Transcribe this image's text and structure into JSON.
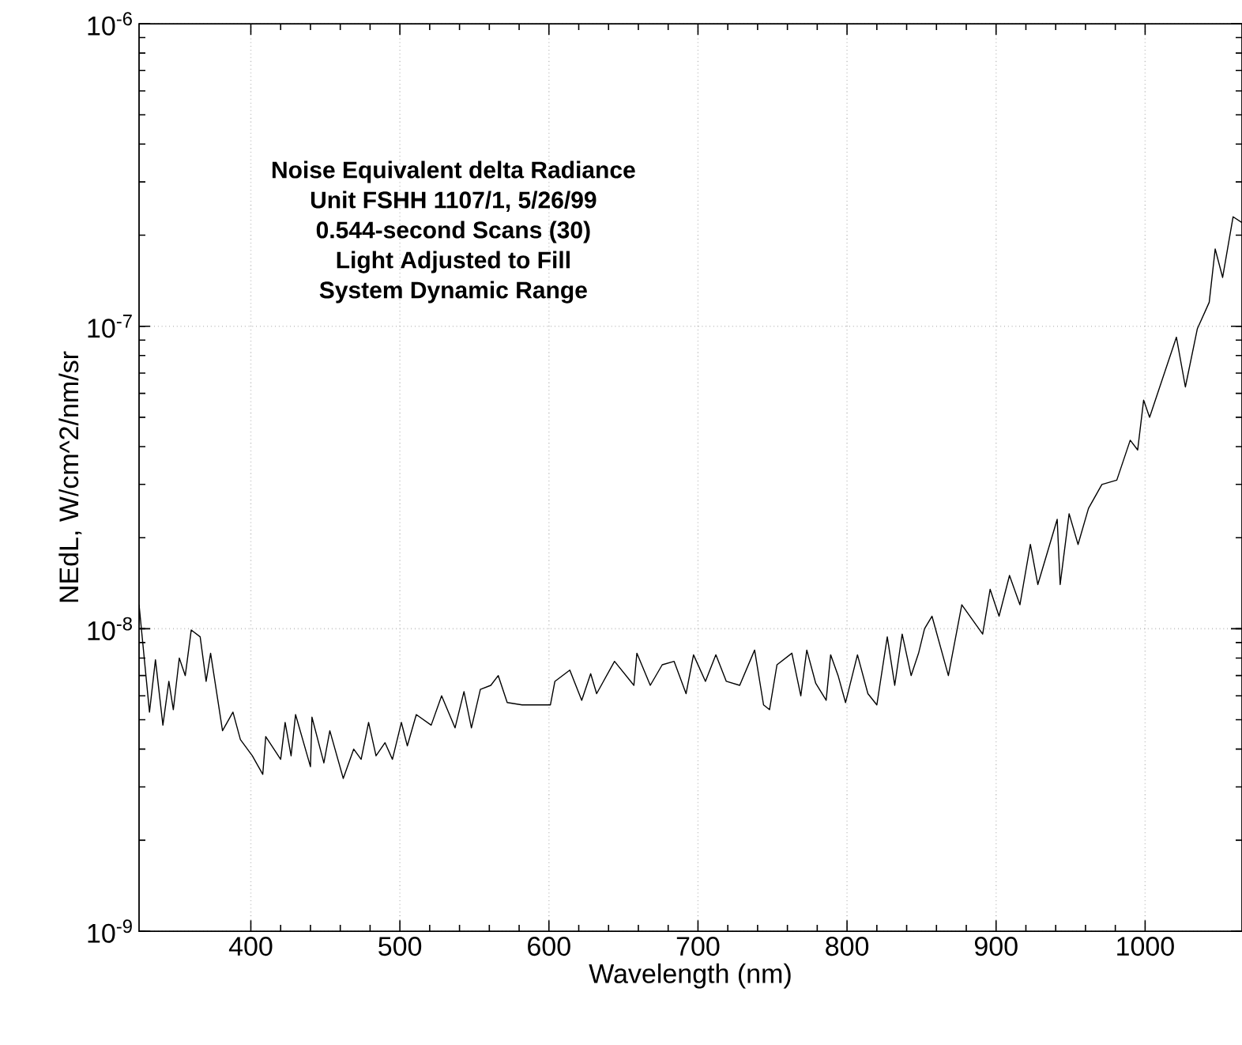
{
  "chart_data": {
    "type": "line",
    "title": "Noise Equivalent delta Radiance",
    "annotations": [
      "Unit FSHH 1107/1, 5/26/99",
      "0.544-second Scans (30)",
      "Light Adjusted to Fill",
      "System Dynamic Range"
    ],
    "xlabel": "Wavelength (nm)",
    "ylabel": "NEdL, W/cm^2/nm/sr",
    "log": "y",
    "grid": true,
    "marker": "none",
    "line_style": "solid",
    "xlim": [
      325,
      1065
    ],
    "xticks": [
      400,
      500,
      600,
      700,
      800,
      900,
      1000
    ],
    "ylim": [
      1e-09,
      1e-06
    ],
    "yticks": [
      {
        "value": 1e-09,
        "label": "10$^{-9}$"
      },
      {
        "value": 1e-08,
        "label": "10$^{-8}$"
      },
      {
        "value": 1e-07,
        "label": "10$^{-7}$"
      },
      {
        "value": 1e-06,
        "label": "10$^{-6}$"
      }
    ],
    "series": [
      {
        "color": "#000000",
        "x": [
          325,
          332,
          336,
          341,
          345,
          348,
          352,
          356,
          360,
          366,
          370,
          373,
          381,
          388,
          393,
          401,
          408,
          410,
          420,
          423,
          427,
          430,
          440,
          441,
          449,
          453,
          462,
          469,
          474,
          479,
          484,
          490,
          495,
          501,
          505,
          511,
          521,
          528,
          537,
          543,
          548,
          554,
          561,
          566,
          572,
          582,
          601,
          604,
          614,
          622,
          628,
          632,
          644,
          657,
          659,
          668,
          676,
          684,
          692,
          697,
          705,
          712,
          719,
          728,
          738,
          744,
          748,
          753,
          763,
          769,
          773,
          779,
          786,
          789,
          794,
          799,
          807,
          814,
          820,
          827,
          832,
          837,
          843,
          848,
          852,
          857,
          868,
          877,
          891,
          896,
          902,
          909,
          916,
          923,
          928,
          941,
          943,
          949,
          955,
          962,
          971,
          981,
          990,
          995,
          999,
          1003,
          1021,
          1027,
          1035,
          1043,
          1047,
          1052,
          1059,
          1065
        ],
        "values": [
          1.2e-08,
          5.3e-09,
          7.9e-09,
          4.8e-09,
          6.7e-09,
          5.4e-09,
          8e-09,
          7e-09,
          9.9e-09,
          9.4e-09,
          6.7e-09,
          8.3e-09,
          4.6e-09,
          5.3e-09,
          4.3e-09,
          3.8e-09,
          3.3e-09,
          4.4e-09,
          3.7e-09,
          4.9e-09,
          3.8e-09,
          5.2e-09,
          3.5e-09,
          5.1e-09,
          3.6e-09,
          4.6e-09,
          3.2e-09,
          4e-09,
          3.7e-09,
          4.9e-09,
          3.8e-09,
          4.2e-09,
          3.7e-09,
          4.9e-09,
          4.1e-09,
          5.2e-09,
          4.8e-09,
          6e-09,
          4.7e-09,
          6.2e-09,
          4.7e-09,
          6.3e-09,
          6.5e-09,
          7e-09,
          5.7e-09,
          5.6e-09,
          5.6e-09,
          6.7e-09,
          7.3e-09,
          5.8e-09,
          7.1e-09,
          6.1e-09,
          7.8e-09,
          6.5e-09,
          8.3e-09,
          6.5e-09,
          7.6e-09,
          7.8e-09,
          6.1e-09,
          8.2e-09,
          6.7e-09,
          8.2e-09,
          6.7e-09,
          6.5e-09,
          8.5e-09,
          5.6e-09,
          5.4e-09,
          7.6e-09,
          8.3e-09,
          6e-09,
          8.5e-09,
          6.6e-09,
          5.8e-09,
          8.2e-09,
          7e-09,
          5.7e-09,
          8.2e-09,
          6.1e-09,
          5.6e-09,
          9.4e-09,
          6.5e-09,
          9.6e-09,
          7e-09,
          8.3e-09,
          1e-08,
          1.1e-08,
          7e-09,
          1.2e-08,
          9.6e-09,
          1.35e-08,
          1.1e-08,
          1.5e-08,
          1.2e-08,
          1.9e-08,
          1.4e-08,
          2.3e-08,
          1.4e-08,
          2.4e-08,
          1.9e-08,
          2.5e-08,
          3e-08,
          3.1e-08,
          4.2e-08,
          3.9e-08,
          5.7e-08,
          5e-08,
          9.2e-08,
          6.3e-08,
          9.8e-08,
          1.2e-07,
          1.8e-07,
          1.45e-07,
          2.3e-07,
          2.2e-07
        ]
      }
    ]
  }
}
